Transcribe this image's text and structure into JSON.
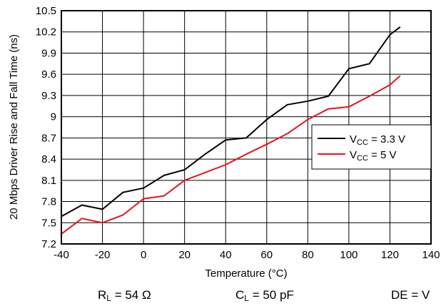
{
  "chart_data": {
    "type": "line",
    "title": "",
    "xlabel": "Temperature (°C)",
    "ylabel": "20 Mbps Driver Rise and Fall Time (ns)",
    "xlim": [
      -40,
      140
    ],
    "ylim": [
      7.2,
      10.5
    ],
    "x_ticks": [
      -40,
      -20,
      0,
      20,
      40,
      60,
      80,
      100,
      120,
      140
    ],
    "x_tick_labels": [
      "-40",
      "-20",
      "0",
      "20",
      "40",
      "60",
      "80",
      "100",
      "120",
      "140"
    ],
    "y_ticks": [
      7.2,
      7.5,
      7.8,
      8.1,
      8.4,
      8.7,
      9,
      9.3,
      9.6,
      9.9,
      10.2,
      10.5
    ],
    "y_tick_labels": [
      "7.2",
      "7.5",
      "7.8",
      "8.1",
      "8.4",
      "8.7",
      "9",
      "9.3",
      "9.6",
      "9.9",
      "10.2",
      "10.5"
    ],
    "grid": true,
    "legend_position": "right",
    "series": [
      {
        "name_main": "V",
        "name_sub": "CC",
        "name_rest": " = 3.3 V",
        "color": "#000000",
        "x": [
          -40,
          -30,
          -20,
          -10,
          0,
          10,
          20,
          30,
          40,
          50,
          60,
          70,
          80,
          90,
          100,
          110,
          120,
          125
        ],
        "y": [
          7.59,
          7.75,
          7.69,
          7.93,
          7.99,
          8.17,
          8.25,
          8.47,
          8.67,
          8.7,
          8.96,
          9.17,
          9.22,
          9.29,
          9.68,
          9.75,
          10.16,
          10.27
        ]
      },
      {
        "name_main": "V",
        "name_sub": "CC",
        "name_rest": " = 5 V",
        "color": "#e8141c",
        "x": [
          -40,
          -30,
          -20,
          -10,
          0,
          10,
          20,
          30,
          40,
          50,
          60,
          70,
          80,
          90,
          100,
          110,
          120,
          125
        ],
        "y": [
          7.34,
          7.56,
          7.5,
          7.61,
          7.84,
          7.88,
          8.1,
          8.21,
          8.32,
          8.47,
          8.61,
          8.76,
          8.96,
          9.11,
          9.14,
          9.29,
          9.45,
          9.58
        ]
      }
    ]
  },
  "conditions": [
    {
      "main": "R",
      "sub": "L",
      "rest": " = 54 Ω"
    },
    {
      "main": "C",
      "sub": "L",
      "rest": " = 50 pF"
    },
    {
      "main": "DE = V",
      "sub": "",
      "rest": ""
    }
  ]
}
